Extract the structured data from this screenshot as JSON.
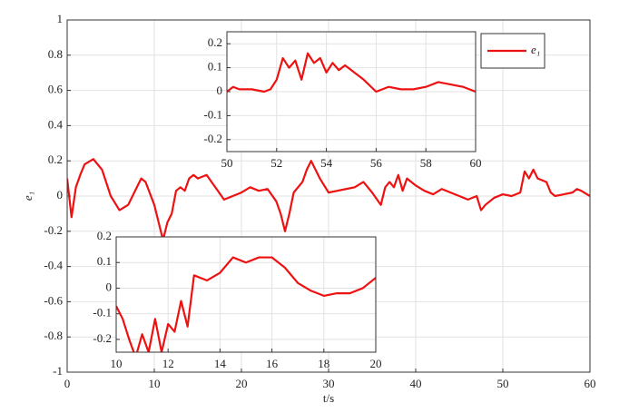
{
  "chart_data": [
    {
      "type": "line",
      "xlabel": "t/s",
      "ylabel": "e₁",
      "xlim": [
        0,
        60
      ],
      "ylim": [
        -1,
        1
      ],
      "xticks": [
        0,
        10,
        20,
        30,
        40,
        50,
        60
      ],
      "yticks": [
        -1,
        -0.8,
        -0.6,
        -0.4,
        -0.2,
        0,
        0.2,
        0.4,
        0.6,
        0.8,
        1
      ],
      "grid": true,
      "legend": "northeast",
      "series": [
        {
          "name": "e₁",
          "color": "#ee1111",
          "x": [
            0,
            0.5,
            1,
            1.5,
            2,
            3,
            4,
            5,
            6,
            7,
            8,
            8.5,
            9,
            10,
            10.5,
            11,
            11.5,
            12,
            12.5,
            13,
            13.5,
            14,
            14.5,
            15,
            16,
            17,
            18,
            19,
            20,
            21,
            22,
            23,
            24,
            24.5,
            25,
            25.5,
            26,
            27,
            27.5,
            28,
            28.5,
            29,
            30,
            31,
            32,
            33,
            34,
            35,
            36,
            36.5,
            37,
            37.5,
            38,
            38.5,
            39,
            39.5,
            40,
            41,
            42,
            43,
            44,
            45,
            46,
            47,
            47.5,
            48,
            49,
            50,
            51,
            52,
            52.5,
            53,
            53.5,
            54,
            55,
            55.5,
            56,
            57,
            58,
            58.5,
            59,
            60
          ],
          "values": [
            0.1,
            -0.12,
            0.05,
            0.12,
            0.18,
            0.21,
            0.15,
            0,
            -0.08,
            -0.05,
            0.05,
            0.1,
            0.08,
            -0.05,
            -0.15,
            -0.25,
            -0.15,
            -0.1,
            0.03,
            0.05,
            0.03,
            0.1,
            0.12,
            0.1,
            0.12,
            0.05,
            -0.02,
            0,
            0.02,
            0.05,
            0.03,
            0.04,
            -0.03,
            -0.1,
            -0.2,
            -0.1,
            0.02,
            0.08,
            0.15,
            0.2,
            0.15,
            0.1,
            0.02,
            0.03,
            0.04,
            0.05,
            0.08,
            0.02,
            -0.05,
            0.05,
            0.08,
            0.05,
            0.12,
            0.03,
            0.1,
            0.08,
            0.06,
            0.03,
            0.01,
            0.04,
            0.02,
            0,
            -0.02,
            0,
            -0.08,
            -0.05,
            -0.01,
            0.01,
            0,
            0.02,
            0.14,
            0.1,
            0.15,
            0.1,
            0.08,
            0.02,
            0,
            0.01,
            0.02,
            0.04,
            0.03,
            0
          ]
        }
      ]
    },
    {
      "type": "line",
      "xlim": [
        50,
        60
      ],
      "ylim": [
        -0.25,
        0.25
      ],
      "xticks": [
        50,
        52,
        54,
        56,
        58,
        60
      ],
      "yticks": [
        -0.2,
        -0.1,
        0,
        0.1,
        0.2
      ],
      "grid": true,
      "series": [
        {
          "color": "#ee1111",
          "x": [
            50,
            50.25,
            50.5,
            51,
            51.5,
            51.75,
            52,
            52.25,
            52.5,
            52.75,
            53,
            53.25,
            53.5,
            53.75,
            54,
            54.25,
            54.5,
            54.75,
            55,
            55.5,
            56,
            56.5,
            57,
            57.5,
            58,
            58.5,
            59,
            59.5,
            60
          ],
          "values": [
            0,
            0.02,
            0.01,
            0.01,
            0,
            0.01,
            0.05,
            0.14,
            0.1,
            0.13,
            0.05,
            0.16,
            0.12,
            0.14,
            0.08,
            0.12,
            0.09,
            0.11,
            0.09,
            0.05,
            0,
            0.02,
            0.01,
            0.01,
            0.02,
            0.04,
            0.03,
            0.02,
            0
          ]
        }
      ]
    },
    {
      "type": "line",
      "xlim": [
        10,
        20
      ],
      "ylim": [
        -0.25,
        0.2
      ],
      "xticks": [
        10,
        12,
        14,
        16,
        18,
        20
      ],
      "yticks": [
        -0.2,
        -0.1,
        0,
        0.1,
        0.2
      ],
      "grid": true,
      "series": [
        {
          "color": "#ee1111",
          "x": [
            10,
            10.25,
            10.5,
            10.75,
            11,
            11.25,
            11.5,
            11.75,
            12,
            12.25,
            12.5,
            12.75,
            13,
            13.5,
            14,
            14.5,
            15,
            15.5,
            16,
            16.5,
            17,
            17.5,
            18,
            18.5,
            19,
            19.5,
            20
          ],
          "values": [
            -0.07,
            -0.12,
            -0.2,
            -0.27,
            -0.18,
            -0.25,
            -0.12,
            -0.25,
            -0.14,
            -0.17,
            -0.05,
            -0.15,
            0.05,
            0.03,
            0.06,
            0.12,
            0.1,
            0.12,
            0.12,
            0.08,
            0.02,
            -0.01,
            -0.03,
            -0.02,
            -0.02,
            0,
            0.04
          ]
        }
      ]
    }
  ]
}
